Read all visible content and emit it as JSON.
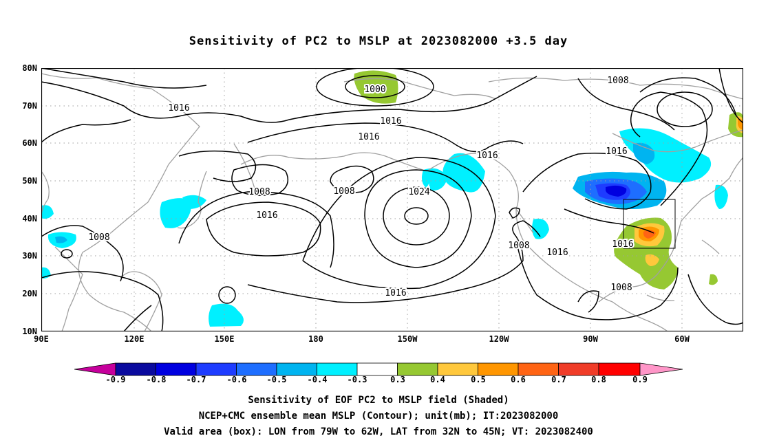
{
  "title": "Sensitivity of PC2 to MSLP at 2023082000 +3.5 day",
  "lat_labels": [
    "80N",
    "70N",
    "60N",
    "50N",
    "40N",
    "30N",
    "20N",
    "10N"
  ],
  "lon_labels": [
    "90E",
    "120E",
    "150E",
    "180",
    "150W",
    "120W",
    "90W",
    "60W"
  ],
  "contour_labels": [
    "1000",
    "1008",
    "1016",
    "1016",
    "1016",
    "1008",
    "1008",
    "1024",
    "1016",
    "1016",
    "1008",
    "1016",
    "1016",
    "1016",
    "1008",
    "1008",
    "1016"
  ],
  "colorbar": {
    "ticks": [
      "-0.9",
      "-0.8",
      "-0.7",
      "-0.6",
      "-0.5",
      "-0.4",
      "-0.3",
      "0.3",
      "0.4",
      "0.5",
      "0.6",
      "0.7",
      "0.8",
      "0.9"
    ],
    "colors": [
      "#c6009c",
      "#0a0a9e",
      "#0000e0",
      "#1e3cff",
      "#1e6eff",
      "#00b4f0",
      "#00f0ff",
      "#ffffff",
      "#96c832",
      "#ffc83c",
      "#ff9600",
      "#ff6414",
      "#f03c28",
      "#ff0000",
      "#ff96c8"
    ]
  },
  "captions": [
    "Sensitivity of EOF PC2 to MSLP field (Shaded)",
    "NCEP+CMC ensemble mean MSLP (Contour); unit(mb); IT:2023082000",
    "Valid area (box): LON from 79W to 62W, LAT from 32N to 45N; VT: 2023082400"
  ]
}
